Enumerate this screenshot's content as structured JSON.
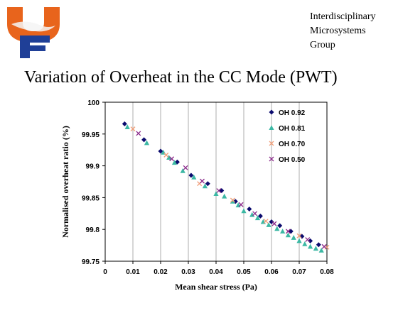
{
  "header": {
    "group_lines": [
      "Interdisciplinary",
      "Microsystems",
      "Group"
    ],
    "logo": {
      "description_icon": "university-gator-logo",
      "colors": {
        "orange": "#e8641c",
        "blue": "#1f3f97"
      }
    }
  },
  "slide": {
    "title": "Variation of Overheat in the CC Mode (PWT)"
  },
  "chart_data": {
    "type": "scatter",
    "xlabel": "Mean shear stress (Pa)",
    "ylabel": "Normalised overheat ratio (%)",
    "xlim": [
      0,
      0.08
    ],
    "ylim": [
      99.75,
      100
    ],
    "xticks": [
      "0",
      "0.01",
      "0.02",
      "0.03",
      "0.04",
      "0.05",
      "0.06",
      "0.07",
      "0.08"
    ],
    "yticks": [
      "99.75",
      "99.8",
      "99.85",
      "99.9",
      "99.95",
      "100"
    ],
    "grid": "vertical",
    "legend_position": "top-right",
    "series": [
      {
        "name": "OH 0.92",
        "marker": "diamond",
        "color": "#0b0b6e",
        "x": [
          0.007,
          0.014,
          0.02,
          0.026,
          0.031,
          0.037,
          0.042,
          0.047,
          0.052,
          0.056,
          0.06,
          0.063,
          0.067,
          0.071,
          0.074,
          0.077
        ],
        "y": [
          99.966,
          99.941,
          99.923,
          99.906,
          99.885,
          99.872,
          99.861,
          99.844,
          99.832,
          99.821,
          99.812,
          99.806,
          99.797,
          99.789,
          99.782,
          99.776
        ]
      },
      {
        "name": "OH 0.81",
        "marker": "triangle",
        "color": "#3cb8a4",
        "x": [
          0.008,
          0.015,
          0.021,
          0.023,
          0.025,
          0.028,
          0.032,
          0.036,
          0.04,
          0.043,
          0.046,
          0.048,
          0.05,
          0.053,
          0.055,
          0.057,
          0.059,
          0.062,
          0.064,
          0.066,
          0.068,
          0.07,
          0.072,
          0.074,
          0.076,
          0.078
        ],
        "y": [
          99.961,
          99.936,
          99.921,
          99.913,
          99.905,
          99.892,
          99.882,
          99.868,
          99.856,
          99.852,
          99.844,
          99.838,
          99.829,
          99.823,
          99.818,
          99.812,
          99.807,
          99.801,
          99.797,
          99.791,
          99.787,
          99.782,
          99.777,
          99.773,
          99.77,
          99.767
        ]
      },
      {
        "name": "OH 0.70",
        "marker": "x",
        "color": "#f2a07a",
        "x": [
          0.01,
          0.022,
          0.034,
          0.046,
          0.058,
          0.07,
          0.08
        ],
        "y": [
          99.958,
          99.917,
          99.872,
          99.846,
          99.813,
          99.79,
          99.772
        ]
      },
      {
        "name": "OH 0.50",
        "marker": "x",
        "color": "#8a2a8a",
        "x": [
          0.012,
          0.024,
          0.029,
          0.035,
          0.041,
          0.049,
          0.054,
          0.061,
          0.066,
          0.073,
          0.079
        ],
        "y": [
          99.951,
          99.911,
          99.897,
          99.876,
          99.861,
          99.839,
          99.825,
          99.809,
          99.797,
          99.784,
          99.773
        ]
      }
    ]
  }
}
